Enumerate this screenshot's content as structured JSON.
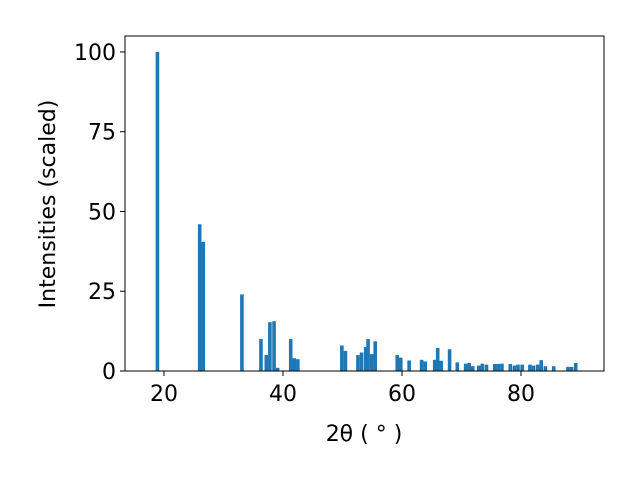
{
  "chart_data": {
    "type": "bar",
    "x_label": "2θ ( ° )",
    "y_label": "Intensities (scaled)",
    "color": "#1f77b4",
    "x": [
      18.9,
      26.0,
      26.6,
      33.1,
      36.3,
      37.2,
      37.8,
      38.5,
      39.1,
      41.3,
      41.9,
      42.5,
      49.9,
      50.5,
      52.6,
      53.2,
      53.9,
      54.3,
      54.9,
      55.5,
      59.2,
      59.8,
      61.2,
      63.3,
      63.9,
      65.5,
      66.0,
      66.6,
      68.0,
      69.3,
      70.7,
      71.3,
      71.9,
      72.9,
      73.5,
      74.2,
      75.6,
      76.2,
      76.8,
      78.2,
      78.9,
      79.5,
      80.2,
      81.5,
      82.1,
      82.8,
      83.4,
      84.1,
      85.5,
      87.9,
      88.5,
      89.2
    ],
    "values": [
      100,
      46,
      40.5,
      24,
      10,
      5,
      15.3,
      15.6,
      1,
      10,
      4,
      3.7,
      8,
      6.3,
      5,
      5.8,
      7.5,
      10,
      5.3,
      9.3,
      5,
      4.2,
      3.3,
      3.5,
      3,
      3.5,
      7.2,
      3.2,
      6.8,
      2.7,
      2.3,
      2.5,
      1.5,
      1.7,
      2.3,
      2.0,
      2.2,
      2.2,
      2.3,
      2.2,
      1.7,
      2.0,
      2.0,
      2.0,
      1.7,
      2.0,
      3.4,
      1.5,
      1.5,
      1.3,
      1.3,
      2.5
    ],
    "xlim": [
      13.45,
      93.95
    ],
    "ylim": [
      0,
      105
    ],
    "xticks": [
      20,
      40,
      60,
      80
    ],
    "yticks": [
      0,
      25,
      50,
      75,
      100
    ],
    "grid": false
  }
}
